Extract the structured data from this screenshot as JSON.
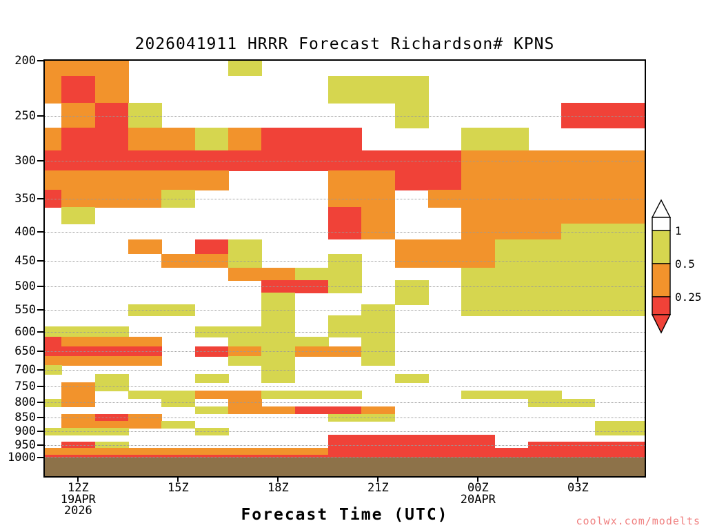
{
  "header": {
    "title": "2026041911 HRRR Forecast Richardson# KPNS"
  },
  "footer": {
    "watermark": "coolwx.com/modelts",
    "watermark_color": "#f08080"
  },
  "chart_data": {
    "type": "heatmap",
    "title": "2026041911 HRRR Forecast Richardson# KPNS",
    "xlabel": "Forecast Time (UTC)",
    "ylabel": "",
    "y_axis": {
      "scale": "log-pressure",
      "min": 200,
      "max": 1000,
      "unit": "hPa"
    },
    "yticks": [
      200,
      250,
      300,
      350,
      400,
      450,
      500,
      550,
      600,
      650,
      700,
      750,
      800,
      850,
      900,
      950,
      1000
    ],
    "x_hours": [
      "11Z",
      "12Z",
      "13Z",
      "14Z",
      "15Z",
      "16Z",
      "17Z",
      "18Z",
      "19Z",
      "20Z",
      "21Z",
      "22Z",
      "23Z",
      "00Z",
      "01Z",
      "02Z",
      "03Z",
      "04Z"
    ],
    "xticks": [
      {
        "label": "12Z",
        "hour_index": 1,
        "sub": [
          "19APR",
          "2026"
        ]
      },
      {
        "label": "15Z",
        "hour_index": 4,
        "sub": []
      },
      {
        "label": "18Z",
        "hour_index": 7,
        "sub": []
      },
      {
        "label": "21Z",
        "hour_index": 10,
        "sub": []
      },
      {
        "label": "00Z",
        "hour_index": 13,
        "sub": [
          "20APR"
        ]
      },
      {
        "label": "03Z",
        "hour_index": 16,
        "sub": []
      }
    ],
    "pressure_levels": [
      200,
      225,
      250,
      275,
      300,
      325,
      350,
      375,
      400,
      425,
      450,
      475,
      500,
      525,
      550,
      575,
      600,
      625,
      650,
      675,
      700,
      725,
      750,
      775,
      800,
      825,
      850,
      875,
      900,
      925,
      950,
      975,
      1000
    ],
    "value_bins": {
      "0": "Ri > 1",
      "1": "0.5 < Ri <= 1",
      "2": "0.25 < Ri <= 0.5",
      "3": "Ri <= 0.25"
    },
    "colors": {
      "0": "#ffffff",
      "1": "#d6d64f",
      "2": "#f2932c",
      "3": "#f04238"
    },
    "ground_color": "#8d7249",
    "grid_rows": [
      "222000100000000000",
      "232000000111000000",
      "023100000001000033",
      "233221233300011000",
      "333333333333322222",
      "222222000223322222",
      "322210000220222222",
      "010000000320022222",
      "000000000320022211",
      "000203100002221111",
      "000022100102221111",
      "000000221100011111",
      "000000033101011111",
      "000000010001011111",
      "000110010010011111",
      "000000010110000000",
      "111001110110000000",
      "322200111010000000",
      "333303212210000000",
      "222200110010000000",
      "100000010000000000",
      "001001010001000000",
      "021000000000000000",
      "020112211100011100",
      "120010200000000110",
      "000001223320000000",
      "023200000110000000",
      "022210000000000001",
      "111001000000000001",
      "000000000333330000",
      "031000000333330333",
      "222222222333333333",
      "333333333333333333"
    ],
    "colorbar": {
      "labels": [
        "1",
        "0.5",
        "0.25"
      ],
      "segment_colors_top_to_bottom": [
        "#ffffff",
        "#d6d64f",
        "#f2932c",
        "#f04238"
      ],
      "position": "right"
    },
    "layout": {
      "horizontal_gridlines": "dotted",
      "vertical_gridlines": false
    }
  }
}
